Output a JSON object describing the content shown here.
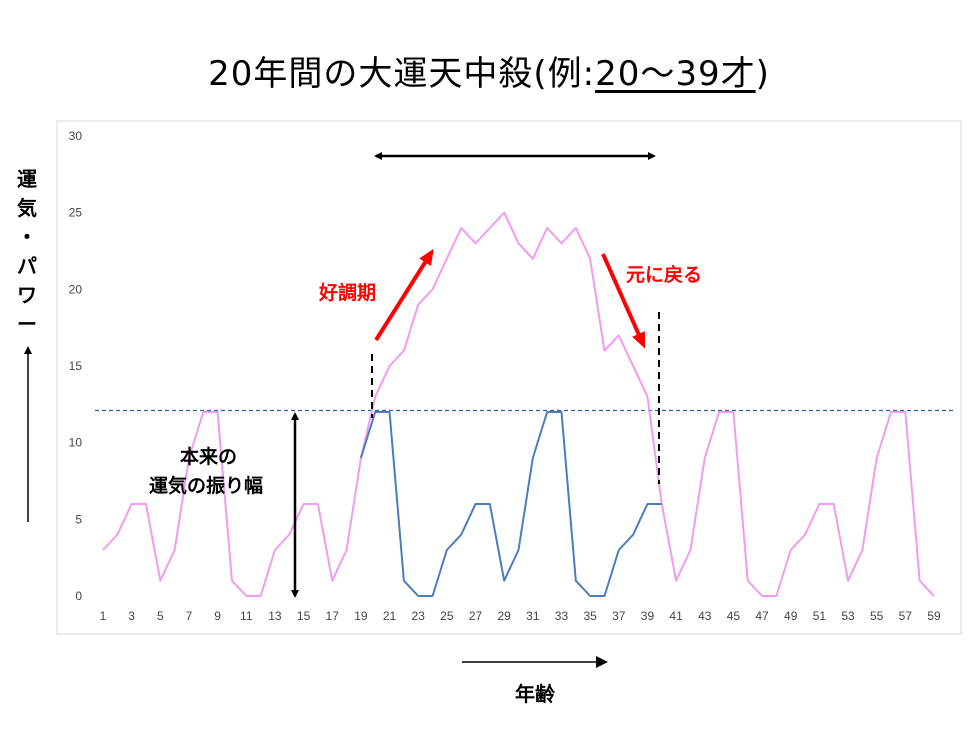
{
  "title": {
    "main": "20年間の大運天中殺(例:",
    "example": "20〜39才",
    "close": ")"
  },
  "yaxis_label": "運気・パワー",
  "xaxis_label": "年齢",
  "annotations": {
    "rise": "好調期",
    "return": "元に戻る",
    "amplitude_line1": "本来の",
    "amplitude_line2": "運気の振り幅"
  },
  "colors": {
    "potential_line": "#f29af2",
    "actual_line": "#4a7ebb",
    "reference_line": "#2e5ea8",
    "arrow_red": "#ff0000",
    "arrow_black": "#000000",
    "plot_border": "#d9d9d9"
  },
  "chart_data": {
    "type": "line",
    "x": [
      1,
      2,
      3,
      4,
      5,
      6,
      7,
      8,
      9,
      10,
      11,
      12,
      13,
      14,
      15,
      16,
      17,
      18,
      19,
      20,
      21,
      22,
      23,
      24,
      25,
      26,
      27,
      28,
      29,
      30,
      31,
      32,
      33,
      34,
      35,
      36,
      37,
      38,
      39,
      40,
      41,
      42,
      43,
      44,
      45,
      46,
      47,
      48,
      49,
      50,
      51,
      52,
      53,
      54,
      55,
      56,
      57,
      58,
      59
    ],
    "xticks": [
      1,
      3,
      5,
      7,
      9,
      11,
      13,
      15,
      17,
      19,
      21,
      23,
      25,
      27,
      29,
      31,
      33,
      35,
      37,
      39,
      41,
      43,
      45,
      47,
      49,
      51,
      53,
      55,
      57,
      59
    ],
    "ylim": [
      0,
      30
    ],
    "yticks": [
      0,
      5,
      10,
      15,
      20,
      25,
      30
    ],
    "grid": false,
    "legend": "none",
    "series": [
      {
        "values": [
          3,
          4,
          6,
          6,
          1,
          3,
          9,
          12,
          12,
          1,
          0,
          0,
          3,
          4,
          6,
          6,
          1,
          3,
          9,
          13,
          15,
          16,
          19,
          20,
          22,
          24,
          23,
          24,
          25,
          23,
          22,
          24,
          23,
          24,
          22,
          16,
          17,
          15,
          13,
          6,
          1,
          3,
          9,
          12,
          12,
          1,
          0,
          0,
          3,
          4,
          6,
          6,
          1,
          3,
          9,
          12,
          12,
          1,
          0
        ]
      },
      {
        "x": [
          19,
          20,
          21,
          22,
          23,
          24,
          25,
          26,
          27,
          28,
          29,
          30,
          31,
          32,
          33,
          34,
          35,
          36,
          37,
          38,
          39,
          40
        ],
        "values": [
          9,
          12,
          12,
          1,
          0,
          0,
          3,
          4,
          6,
          6,
          1,
          3,
          9,
          12,
          12,
          1,
          0,
          0,
          3,
          4,
          6,
          6
        ]
      }
    ],
    "reference_line": {
      "y": 12.1
    }
  }
}
